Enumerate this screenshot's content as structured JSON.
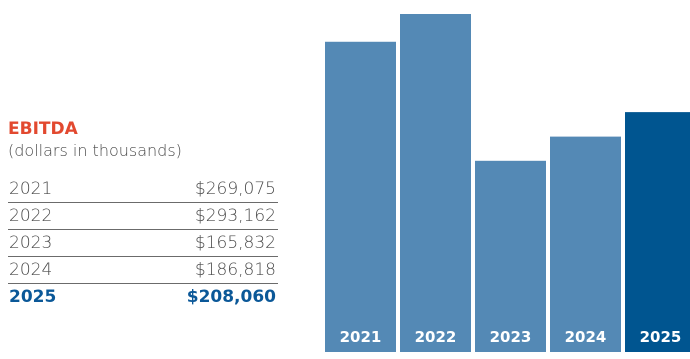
{
  "colors": {
    "title": "#e2492f",
    "bar": "#5489b5",
    "bar_highlight": "#005590",
    "highlight_text": "#0b5898"
  },
  "chart_data": {
    "type": "bar",
    "title": "EBITDA",
    "subtitle": "(dollars in thousands)",
    "categories": [
      "2021",
      "2022",
      "2023",
      "2024",
      "2025"
    ],
    "values": [
      269075,
      293162,
      165832,
      186818,
      208060
    ],
    "highlight_index": 4,
    "table": [
      {
        "year": "2021",
        "value": "$269,075"
      },
      {
        "year": "2022",
        "value": "$293,162"
      },
      {
        "year": "2023",
        "value": "$165,832"
      },
      {
        "year": "2024",
        "value": "$186,818"
      },
      {
        "year": "2025",
        "value": "$208,060"
      }
    ]
  }
}
